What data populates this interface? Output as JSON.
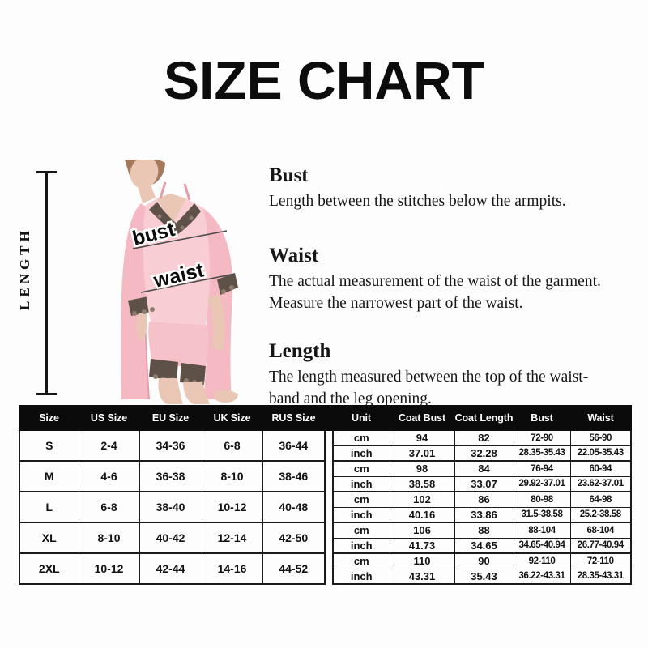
{
  "page": {
    "title": "SIZE CHART"
  },
  "figure": {
    "length_label": "LENGTH",
    "bust_label": "bust",
    "waist_label": "waist",
    "colors": {
      "robe": "#f4b9c2",
      "robe_edge": "#e49cab",
      "cami": "#f9cdd4",
      "shorts": "#f6c2ca",
      "lace": "#5e5148",
      "lace_light": "#8c7c6d",
      "skin": "#eac6b5",
      "hair": "#a5795d",
      "measure_line": "#4a4a4a"
    }
  },
  "descriptions": [
    {
      "heading": "Bust",
      "text": "Length between the stitches below the armpits."
    },
    {
      "heading": "Waist",
      "text": "The actual measurement of the waist of the garment.\nMeasure the narrowest part of the waist."
    },
    {
      "heading": "Length",
      "text": "The length measured between the top of the waist-\nband and the leg opening."
    }
  ],
  "size_table": {
    "left_headers": [
      "Size",
      "US Size",
      "EU Size",
      "UK Size",
      "RUS Size"
    ],
    "right_headers": [
      "Unit",
      "Coat Bust",
      "Coat Length",
      "Bust",
      "Waist"
    ],
    "unit_labels": [
      "cm",
      "inch"
    ],
    "rows": [
      {
        "size": "S",
        "us": "2-4",
        "eu": "34-36",
        "uk": "6-8",
        "rus": "36-44",
        "cm": [
          "94",
          "82",
          "72-90",
          "56-90"
        ],
        "inch": [
          "37.01",
          "32.28",
          "28.35-35.43",
          "22.05-35.43"
        ]
      },
      {
        "size": "M",
        "us": "4-6",
        "eu": "36-38",
        "uk": "8-10",
        "rus": "38-46",
        "cm": [
          "98",
          "84",
          "76-94",
          "60-94"
        ],
        "inch": [
          "38.58",
          "33.07",
          "29.92-37.01",
          "23.62-37.01"
        ]
      },
      {
        "size": "L",
        "us": "6-8",
        "eu": "38-40",
        "uk": "10-12",
        "rus": "40-48",
        "cm": [
          "102",
          "86",
          "80-98",
          "64-98"
        ],
        "inch": [
          "40.16",
          "33.86",
          "31.5-38.58",
          "25.2-38.58"
        ]
      },
      {
        "size": "XL",
        "us": "8-10",
        "eu": "40-42",
        "uk": "12-14",
        "rus": "42-50",
        "cm": [
          "106",
          "88",
          "88-104",
          "68-104"
        ],
        "inch": [
          "41.73",
          "34.65",
          "34.65-40.94",
          "26.77-40.94"
        ]
      },
      {
        "size": "2XL",
        "us": "10-12",
        "eu": "42-44",
        "uk": "14-16",
        "rus": "44-52",
        "cm": [
          "110",
          "90",
          "92-110",
          "72-110"
        ],
        "inch": [
          "43.31",
          "35.43",
          "36.22-43.31",
          "28.35-43.31"
        ]
      }
    ]
  }
}
